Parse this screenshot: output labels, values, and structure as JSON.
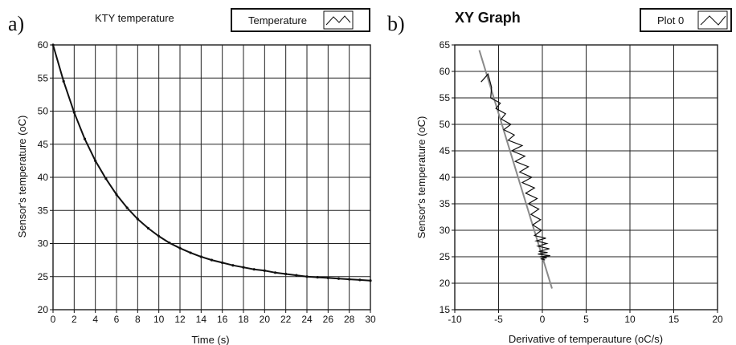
{
  "chart_data": [
    {
      "type": "line",
      "panel_label": "a)",
      "title": "KTY temperature",
      "xlabel": "Time (s)",
      "ylabel": "Sensor's temperature (oC)",
      "xlim": [
        0,
        30
      ],
      "ylim": [
        20,
        60
      ],
      "xticks": [
        0,
        2,
        4,
        6,
        8,
        10,
        12,
        14,
        16,
        18,
        20,
        22,
        24,
        26,
        28,
        30
      ],
      "yticks": [
        20,
        25,
        30,
        35,
        40,
        45,
        50,
        55,
        60
      ],
      "grid": true,
      "legend": "top-right",
      "series": [
        {
          "name": "Temperature",
          "x": [
            0,
            1,
            2,
            3,
            4,
            5,
            6,
            7,
            8,
            9,
            10,
            11,
            12,
            13,
            14,
            15,
            16,
            17,
            18,
            19,
            20,
            21,
            22,
            23,
            24,
            25,
            26,
            27,
            28,
            29,
            30
          ],
          "y": [
            60,
            54.5,
            49.8,
            45.8,
            42.5,
            39.8,
            37.4,
            35.4,
            33.7,
            32.3,
            31.1,
            30.1,
            29.3,
            28.6,
            28.0,
            27.5,
            27.1,
            26.7,
            26.4,
            26.1,
            25.9,
            25.6,
            25.4,
            25.2,
            25.0,
            24.9,
            24.8,
            24.7,
            24.6,
            24.5,
            24.4
          ]
        }
      ]
    },
    {
      "type": "line",
      "panel_label": "b)",
      "title": "XY Graph",
      "xlabel": "Derivative of temperauture (oC/s)",
      "ylabel": "Sensor's temperature (oC)",
      "xlim": [
        -10,
        20
      ],
      "ylim": [
        15,
        65
      ],
      "xticks": [
        -10,
        -5,
        0,
        5,
        10,
        15,
        20
      ],
      "yticks": [
        15,
        20,
        25,
        30,
        35,
        40,
        45,
        50,
        55,
        60,
        65
      ],
      "grid": true,
      "legend": "top-right",
      "series": [
        {
          "name": "Plot 0",
          "x": [
            -7.0,
            -6.2,
            -5.8,
            -5.9,
            -4.8,
            -5.3,
            -4.2,
            -4.7,
            -3.6,
            -4.4,
            -3.2,
            -3.9,
            -2.3,
            -3.5,
            -2.0,
            -3.1,
            -1.6,
            -2.6,
            -1.2,
            -2.3,
            -0.9,
            -1.9,
            -0.6,
            -1.6,
            -0.4,
            -1.3,
            -0.2,
            -1.1,
            -0.1,
            -0.9,
            0.4,
            -0.7,
            0.5,
            -0.5,
            0.8,
            -0.4,
            0.6,
            -0.5,
            0.9,
            -0.3,
            0.5,
            -0.2,
            0.3
          ],
          "y": [
            58.0,
            59.5,
            57.0,
            55.0,
            54.0,
            53.0,
            52.0,
            51.0,
            50.0,
            49.0,
            48.0,
            47.0,
            46.0,
            45.0,
            44.0,
            43.0,
            42.0,
            41.0,
            40.0,
            39.0,
            38.0,
            37.0,
            36.0,
            35.0,
            34.0,
            33.0,
            32.0,
            31.0,
            30.0,
            29.0,
            28.5,
            28.0,
            27.5,
            27.0,
            26.5,
            26.0,
            25.8,
            25.5,
            25.2,
            25.0,
            24.8,
            24.6,
            24.4
          ]
        }
      ],
      "fit_line": {
        "x": [
          -7.2,
          1.1
        ],
        "y": [
          64.0,
          19.0
        ]
      }
    }
  ]
}
